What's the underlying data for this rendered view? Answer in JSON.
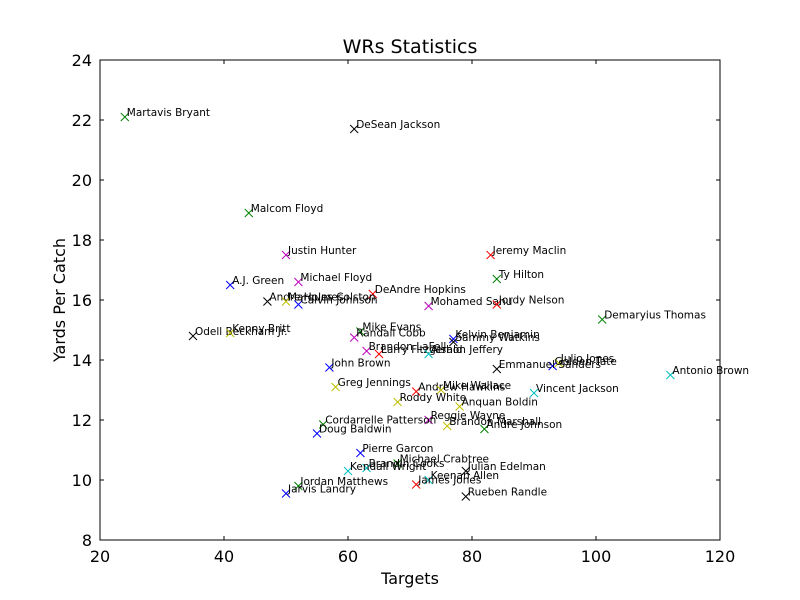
{
  "chart_data": {
    "type": "scatter",
    "title": "WRs Statistics",
    "xlabel": "Targets",
    "ylabel": "Yards Per Catch",
    "xlim": [
      20,
      120
    ],
    "ylim": [
      8,
      24
    ],
    "xticks": [
      20,
      40,
      60,
      80,
      100,
      120
    ],
    "yticks": [
      8,
      10,
      12,
      14,
      16,
      18,
      20,
      22,
      24
    ],
    "marker": "x",
    "grid": false,
    "palette": [
      "#0000ff",
      "#008000",
      "#ff0000",
      "#00bfbf",
      "#bf00bf",
      "#bfbf00",
      "#000000"
    ],
    "points": [
      {
        "name": "Martavis Bryant",
        "x": 24,
        "y": 22.1,
        "color": "#008000"
      },
      {
        "name": "DeSean Jackson",
        "x": 61,
        "y": 21.7,
        "color": "#000000"
      },
      {
        "name": "Malcom Floyd",
        "x": 44,
        "y": 18.9,
        "color": "#008000"
      },
      {
        "name": "Justin Hunter",
        "x": 50,
        "y": 17.5,
        "color": "#bf00bf"
      },
      {
        "name": "Jeremy Maclin",
        "x": 83,
        "y": 17.5,
        "color": "#ff0000"
      },
      {
        "name": "Ty Hilton",
        "x": 84,
        "y": 16.7,
        "color": "#008000"
      },
      {
        "name": "A.J. Green",
        "x": 41,
        "y": 16.5,
        "color": "#0000ff"
      },
      {
        "name": "Michael Floyd",
        "x": 52,
        "y": 16.6,
        "color": "#bf00bf"
      },
      {
        "name": "DeAndre Hopkins",
        "x": 64,
        "y": 16.2,
        "color": "#ff0000"
      },
      {
        "name": "Andre Holmes",
        "x": 47,
        "y": 15.95,
        "color": "#000000"
      },
      {
        "name": "Marques Colston",
        "x": 50,
        "y": 15.95,
        "color": "#bfbf00"
      },
      {
        "name": "Calvin Johnson",
        "x": 52,
        "y": 15.85,
        "color": "#0000ff"
      },
      {
        "name": "Mohamed Sanu",
        "x": 73,
        "y": 15.8,
        "color": "#bf00bf"
      },
      {
        "name": "Jordy Nelson",
        "x": 84,
        "y": 15.85,
        "color": "#ff0000"
      },
      {
        "name": "Demaryius Thomas",
        "x": 101,
        "y": 15.35,
        "color": "#008000"
      },
      {
        "name": "Odell Beckham Jr.",
        "x": 35,
        "y": 14.8,
        "color": "#000000"
      },
      {
        "name": "Kenny Britt",
        "x": 41,
        "y": 14.9,
        "color": "#bfbf00"
      },
      {
        "name": "Mike Evans",
        "x": 62,
        "y": 14.95,
        "color": "#008000"
      },
      {
        "name": "Randall Cobb",
        "x": 61,
        "y": 14.75,
        "color": "#bf00bf"
      },
      {
        "name": "Kelvin Benjamin",
        "x": 77,
        "y": 14.7,
        "color": "#0000ff"
      },
      {
        "name": "Sammy Watkins",
        "x": 77,
        "y": 14.6,
        "color": "#000000"
      },
      {
        "name": "Brandon LaFell",
        "x": 63,
        "y": 14.3,
        "color": "#bf00bf"
      },
      {
        "name": "Larry Fitzgerald",
        "x": 65,
        "y": 14.2,
        "color": "#ff0000"
      },
      {
        "name": "Alshon Jeffery",
        "x": 73,
        "y": 14.2,
        "color": "#00bfbf"
      },
      {
        "name": "Julio Jones",
        "x": 94,
        "y": 13.9,
        "color": "#bfbf00"
      },
      {
        "name": "Golden Tate",
        "x": 93,
        "y": 13.8,
        "color": "#0000ff"
      },
      {
        "name": "Emmanuel Sanders",
        "x": 84,
        "y": 13.7,
        "color": "#000000"
      },
      {
        "name": "John Brown",
        "x": 57,
        "y": 13.75,
        "color": "#0000ff"
      },
      {
        "name": "Antonio Brown",
        "x": 112,
        "y": 13.5,
        "color": "#00bfbf"
      },
      {
        "name": "Greg Jennings",
        "x": 58,
        "y": 13.1,
        "color": "#bfbf00"
      },
      {
        "name": "Andrew Hawkins",
        "x": 71,
        "y": 12.95,
        "color": "#ff0000"
      },
      {
        "name": "Mike Wallace",
        "x": 75,
        "y": 13.0,
        "color": "#bfbf00"
      },
      {
        "name": "Vincent Jackson",
        "x": 90,
        "y": 12.9,
        "color": "#00bfbf"
      },
      {
        "name": "Roddy White",
        "x": 68,
        "y": 12.6,
        "color": "#bfbf00"
      },
      {
        "name": "Anquan Boldin",
        "x": 78,
        "y": 12.45,
        "color": "#bfbf00"
      },
      {
        "name": "Reggie Wayne",
        "x": 73,
        "y": 12.0,
        "color": "#bf00bf"
      },
      {
        "name": "Cordarrelle Patterson",
        "x": 56,
        "y": 11.85,
        "color": "#008000"
      },
      {
        "name": "Brandon Marshall",
        "x": 76,
        "y": 11.8,
        "color": "#bfbf00"
      },
      {
        "name": "Andre Johnson",
        "x": 82,
        "y": 11.7,
        "color": "#008000"
      },
      {
        "name": "Doug Baldwin",
        "x": 55,
        "y": 11.55,
        "color": "#0000ff"
      },
      {
        "name": "Pierre Garcon",
        "x": 62,
        "y": 10.9,
        "color": "#0000ff"
      },
      {
        "name": "Michael Crabtree",
        "x": 68,
        "y": 10.55,
        "color": "#008000"
      },
      {
        "name": "Brandin Cooks",
        "x": 63,
        "y": 10.4,
        "color": "#00bfbf"
      },
      {
        "name": "Kendall Wright",
        "x": 60,
        "y": 10.3,
        "color": "#00bfbf"
      },
      {
        "name": "Julian Edelman",
        "x": 79,
        "y": 10.3,
        "color": "#000000"
      },
      {
        "name": "Keenan Allen",
        "x": 73,
        "y": 10.0,
        "color": "#00bfbf"
      },
      {
        "name": "James Jones",
        "x": 71,
        "y": 9.85,
        "color": "#ff0000"
      },
      {
        "name": "Jordan Matthews",
        "x": 52,
        "y": 9.8,
        "color": "#008000"
      },
      {
        "name": "Jarvis Landry",
        "x": 50,
        "y": 9.55,
        "color": "#0000ff"
      },
      {
        "name": "Rueben Randle",
        "x": 79,
        "y": 9.45,
        "color": "#000000"
      }
    ]
  }
}
